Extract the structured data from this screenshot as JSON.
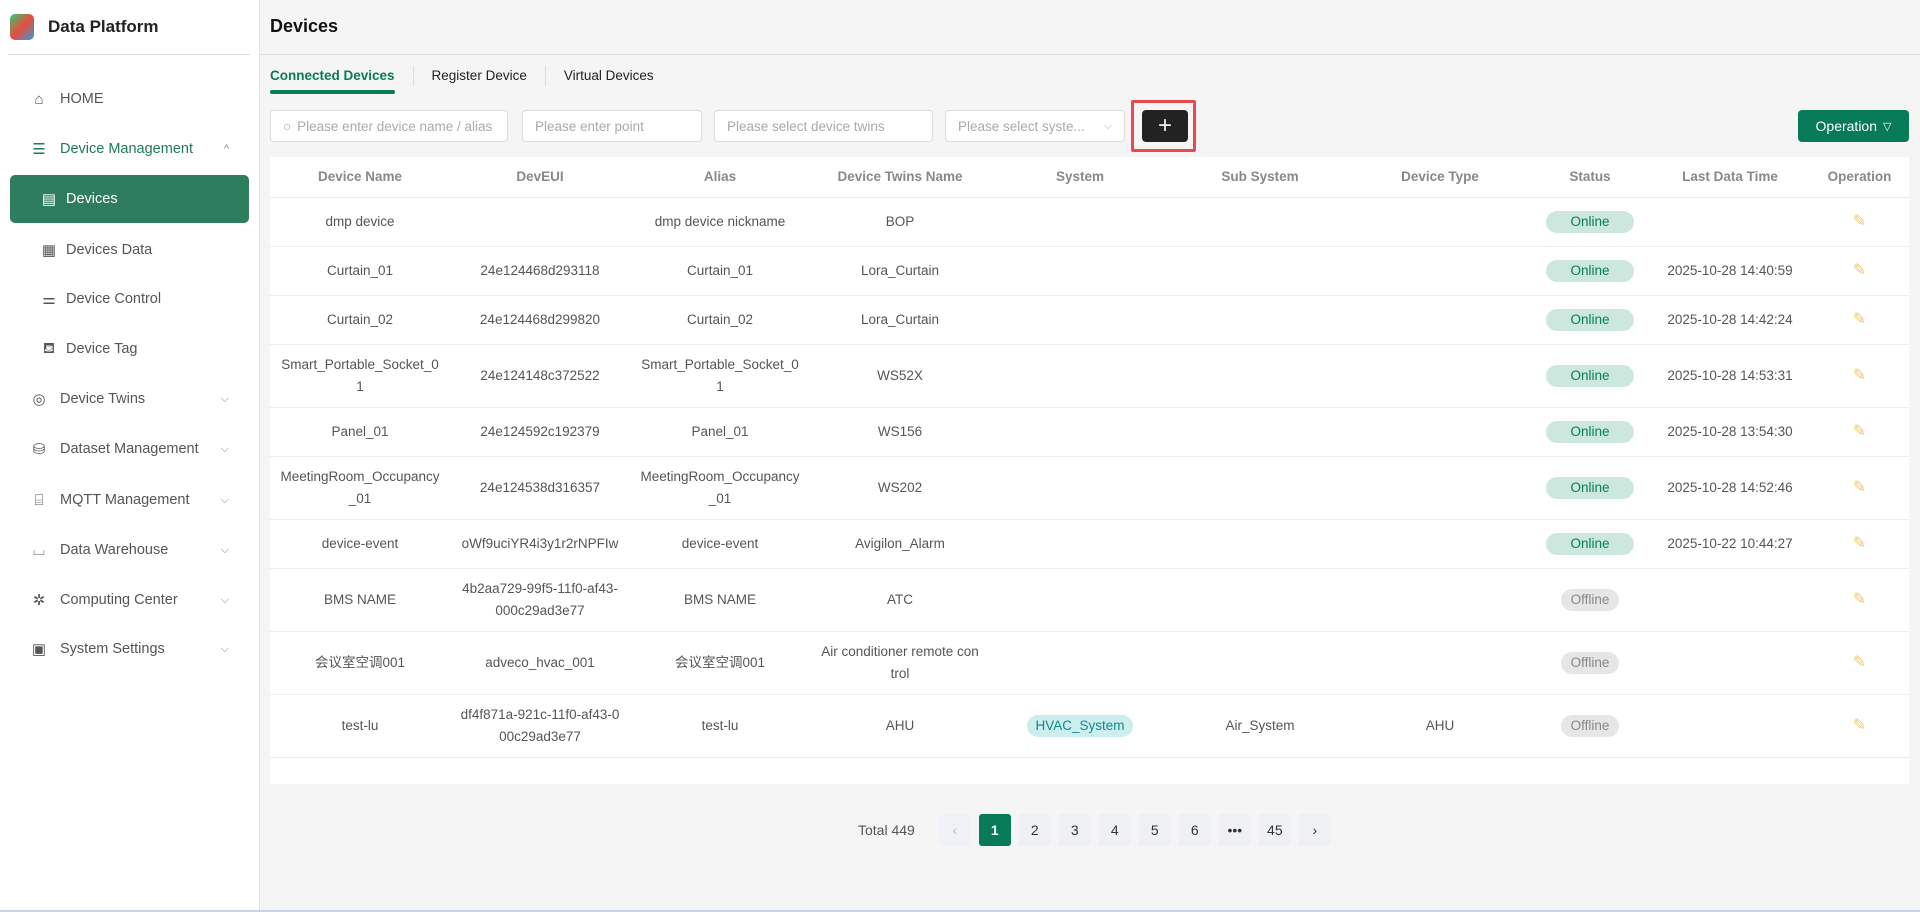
{
  "app": {
    "title": "Data Platform"
  },
  "sidebar": {
    "items": [
      {
        "label": "HOME",
        "icon": "home-icon",
        "glyph": "⌂",
        "type": "top"
      },
      {
        "label": "Device Management",
        "icon": "server-icon",
        "glyph": "☰",
        "type": "open",
        "chevron": "^"
      },
      {
        "label": "Devices",
        "icon": "device-list-icon",
        "glyph": "▤",
        "type": "active"
      },
      {
        "label": "Devices Data",
        "icon": "data-sheet-icon",
        "glyph": "▦",
        "type": "sub"
      },
      {
        "label": "Device Control",
        "icon": "sliders-icon",
        "glyph": "⚌",
        "type": "sub"
      },
      {
        "label": "Device Tag",
        "icon": "tag-icon",
        "glyph": "⛾",
        "type": "sub"
      },
      {
        "label": "Device Twins",
        "icon": "cube-icon",
        "glyph": "◎",
        "type": "top",
        "chevron": "⌵"
      },
      {
        "label": "Dataset Management",
        "icon": "database-icon",
        "glyph": "⛁",
        "type": "top",
        "chevron": "⌵"
      },
      {
        "label": "MQTT Management",
        "icon": "router-icon",
        "glyph": "⌸",
        "type": "top",
        "chevron": "⌵"
      },
      {
        "label": "Data Warehouse",
        "icon": "board-icon",
        "glyph": "⌴",
        "type": "top",
        "chevron": "⌵"
      },
      {
        "label": "Computing Center",
        "icon": "fan-icon",
        "glyph": "✲",
        "type": "top",
        "chevron": "⌵"
      },
      {
        "label": "System Settings",
        "icon": "monitor-icon",
        "glyph": "▣",
        "type": "top",
        "chevron": "⌵"
      }
    ]
  },
  "header": {
    "title": "Devices"
  },
  "tabs": [
    {
      "label": "Connected Devices",
      "active": true
    },
    {
      "label": "Register Device"
    },
    {
      "label": "Virtual Devices"
    }
  ],
  "filters": {
    "name_placeholder": "Please enter device name / alias",
    "point_placeholder": "Please enter point",
    "twins_placeholder": "Please select device twins",
    "system_placeholder": "Please select syste...",
    "add_label": "+",
    "operation_label": "Operation"
  },
  "table": {
    "columns": [
      "Device Name",
      "DevEUI",
      "Alias",
      "Device Twins Name",
      "System",
      "Sub System",
      "Device Type",
      "Status",
      "Last Data Time",
      "Operation"
    ],
    "rows": [
      [
        "dmp device",
        "",
        "dmp device nickname",
        "BOP",
        "",
        "",
        "",
        "Online",
        ""
      ],
      [
        "Curtain_01",
        "24e124468d293118",
        "Curtain_01",
        "Lora_Curtain",
        "",
        "",
        "",
        "Online",
        "2025-10-28 14:40:59"
      ],
      [
        "Curtain_02",
        "24e124468d299820",
        "Curtain_02",
        "Lora_Curtain",
        "",
        "",
        "",
        "Online",
        "2025-10-28 14:42:24"
      ],
      [
        "Smart_Portable_Socket_01",
        "24e124148c372522",
        "Smart_Portable_Socket_01",
        "WS52X",
        "",
        "",
        "",
        "Online",
        "2025-10-28 14:53:31"
      ],
      [
        "Panel_01",
        "24e124592c192379",
        "Panel_01",
        "WS156",
        "",
        "",
        "",
        "Online",
        "2025-10-28 13:54:30"
      ],
      [
        "MeetingRoom_Occupancy_01",
        "24e124538d316357",
        "MeetingRoom_Occupancy_01",
        "WS202",
        "",
        "",
        "",
        "Online",
        "2025-10-28 14:52:46"
      ],
      [
        "device-event",
        "oWf9uciYR4i3y1r2rNPFIw",
        "device-event",
        "Avigilon_Alarm",
        "",
        "",
        "",
        "Online",
        "2025-10-22 10:44:27"
      ],
      [
        "BMS NAME",
        "4b2aa729-99f5-11f0-af43-000c29ad3e77",
        "BMS NAME",
        "ATC",
        "",
        "",
        "",
        "Offline",
        ""
      ],
      [
        "会议室空调001",
        "adveco_hvac_001",
        "会议室空调001",
        "Air conditioner remote control",
        "",
        "",
        "",
        "Offline",
        ""
      ],
      [
        "test-lu",
        "df4f871a-921c-11f0-af43-000c29ad3e77",
        "test-lu",
        "AHU",
        "HVAC_System",
        "Air_System",
        "AHU",
        "Offline",
        ""
      ]
    ]
  },
  "pagination": {
    "total": "Total 449",
    "pages": [
      "1",
      "2",
      "3",
      "4",
      "5",
      "6",
      "•••",
      "45"
    ],
    "current": "1"
  },
  "colors": {
    "accent": "#077a58",
    "online_bg": "#cce8de",
    "highlight": "#e84b4b"
  }
}
